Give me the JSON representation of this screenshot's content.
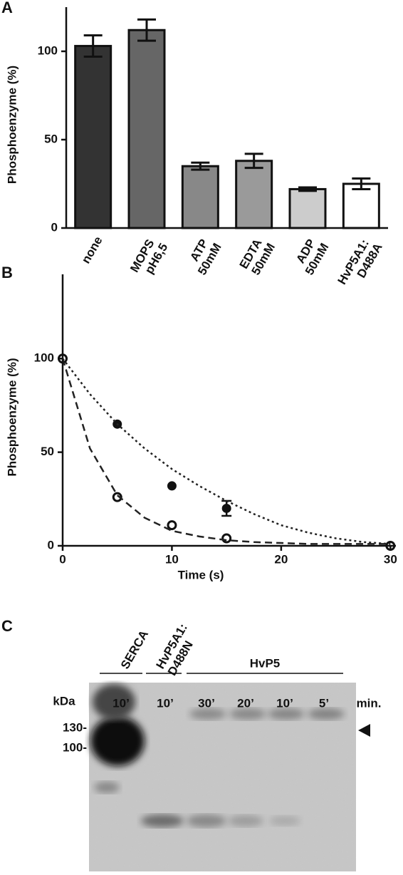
{
  "chart_data": [
    {
      "type": "bar",
      "label": "A",
      "ylabel": "Phosphoenzyme (%)",
      "categories": [
        "none",
        "MOPS pH6,5",
        "ATP 50mM",
        "EDTA 50mM",
        "ADP 50mM",
        "HvP5A1: D488A"
      ],
      "values": [
        103,
        112,
        35,
        38,
        22,
        25
      ],
      "errors": [
        6,
        6,
        2,
        4,
        1,
        3
      ],
      "colors": [
        "#333333",
        "#666666",
        "#888888",
        "#9a9a9a",
        "#cccccc",
        "#ffffff"
      ],
      "ylim": [
        0,
        125
      ],
      "yticks": [
        0,
        50,
        100
      ]
    },
    {
      "type": "scatter",
      "label": "B",
      "ylabel": "Phosphoenzyme (%)",
      "xlabel": "Time (s)",
      "series": [
        {
          "x": [
            0,
            5,
            10,
            15,
            30
          ],
          "values": [
            100,
            65,
            32,
            20,
            0
          ],
          "errors": [
            null,
            null,
            null,
            4,
            null
          ],
          "marker": "filled",
          "color": "#111111"
        },
        {
          "x": [
            0,
            5,
            10,
            15,
            30
          ],
          "values": [
            100,
            26,
            11,
            4,
            0
          ],
          "marker": "open",
          "color": "#111111"
        },
        {
          "x": [
            0,
            2.5,
            5,
            7.5,
            10,
            12.5,
            15,
            17.5,
            20,
            22.5,
            25,
            27.5,
            30
          ],
          "values": [
            100,
            81,
            65,
            52,
            41,
            32,
            24,
            17,
            11,
            7,
            4,
            2,
            1
          ],
          "dash": "3 4",
          "color": "#222222"
        },
        {
          "x": [
            0,
            2.5,
            5,
            7.5,
            10,
            12.5,
            15,
            17.5,
            20,
            22.5,
            25,
            27.5,
            30
          ],
          "values": [
            100,
            52,
            27,
            15,
            8,
            5,
            3,
            2,
            1.5,
            1,
            1,
            1,
            1
          ],
          "dash": "10 6",
          "color": "#222222"
        }
      ],
      "xlim": [
        0,
        30.5
      ],
      "xticks": [
        0,
        10,
        20,
        30
      ],
      "ylim": [
        0,
        145
      ],
      "yticks": [
        0,
        50,
        100
      ]
    }
  ],
  "gel": {
    "label": "C",
    "groups": [
      "SERCA",
      "HvP5A1: D488N",
      "HvP5"
    ],
    "unit": "kDa",
    "lanes": [
      "10’",
      "10’",
      "30’",
      "20’",
      "10’",
      "5’"
    ],
    "time_unit": "min.",
    "markers": [
      "130-",
      "100-"
    ]
  }
}
